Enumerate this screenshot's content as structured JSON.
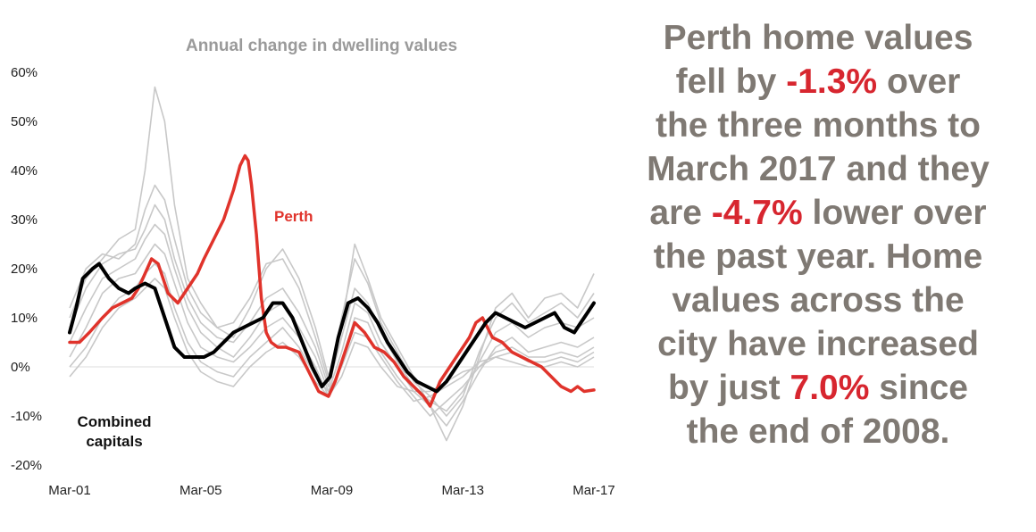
{
  "chart_data": {
    "type": "line",
    "title": "Annual change in dwelling values",
    "xlabel": "",
    "ylabel": "",
    "x_tick_labels": [
      "Mar-01",
      "Mar-05",
      "Mar-09",
      "Mar-13",
      "Mar-17"
    ],
    "x_ticks": [
      2001,
      2005,
      2009,
      2013,
      2017
    ],
    "xlim": [
      2001,
      2017
    ],
    "y_tick_labels": [
      "60%",
      "50%",
      "40%",
      "30%",
      "20%",
      "10%",
      "0%",
      "-10%",
      "-20%"
    ],
    "y_ticks": [
      60,
      50,
      40,
      30,
      20,
      10,
      0,
      -10,
      -20
    ],
    "ylim": [
      -20,
      60
    ],
    "grid": false,
    "zero_line": true,
    "series_labels": {
      "perth": "Perth",
      "combined": "Combined capitals"
    },
    "colors": {
      "perth": "#e0332b",
      "combined": "#000000",
      "other_capitals": "#c8c8c8"
    },
    "series": [
      {
        "name": "Perth",
        "color": "#e0332b",
        "x": [
          2001.0,
          2001.3,
          2001.6,
          2002.0,
          2002.3,
          2002.6,
          2002.9,
          2003.1,
          2003.3,
          2003.5,
          2003.7,
          2004.0,
          2004.3,
          2004.6,
          2004.9,
          2005.1,
          2005.4,
          2005.7,
          2006.0,
          2006.2,
          2006.35,
          2006.45,
          2006.55,
          2006.7,
          2006.85,
          2007.0,
          2007.15,
          2007.35,
          2007.6,
          2008.0,
          2008.3,
          2008.6,
          2008.9,
          2009.1,
          2009.4,
          2009.7,
          2010.0,
          2010.3,
          2010.6,
          2010.9,
          2011.2,
          2011.5,
          2011.8,
          2012.0,
          2012.3,
          2012.6,
          2012.9,
          2013.2,
          2013.4,
          2013.6,
          2013.9,
          2014.2,
          2014.5,
          2014.8,
          2015.1,
          2015.4,
          2015.7,
          2016.0,
          2016.3,
          2016.5,
          2016.7,
          2017.0
        ],
        "values": [
          5,
          5,
          7,
          10,
          12,
          13,
          14,
          16,
          19,
          22,
          21,
          15,
          13,
          16,
          19,
          22,
          26,
          30,
          36,
          41,
          43,
          42,
          37,
          27,
          14,
          7,
          5,
          4,
          4,
          3,
          -1,
          -5,
          -6,
          -3,
          3,
          9,
          7,
          4,
          3,
          1,
          -2,
          -4,
          -6,
          -8,
          -3,
          0,
          3,
          6,
          9,
          10,
          6,
          5,
          3,
          2,
          1,
          0,
          -2,
          -4,
          -5,
          -4,
          -5,
          -4.7
        ]
      },
      {
        "name": "Combined capitals",
        "color": "#000000",
        "x": [
          2001.0,
          2001.2,
          2001.4,
          2001.7,
          2001.9,
          2002.2,
          2002.5,
          2002.8,
          2003.0,
          2003.3,
          2003.6,
          2003.9,
          2004.2,
          2004.5,
          2004.8,
          2005.1,
          2005.4,
          2005.7,
          2006.0,
          2006.3,
          2006.6,
          2006.9,
          2007.2,
          2007.5,
          2007.8,
          2008.1,
          2008.4,
          2008.7,
          2008.95,
          2009.2,
          2009.5,
          2009.8,
          2010.1,
          2010.4,
          2010.7,
          2011.0,
          2011.3,
          2011.6,
          2011.9,
          2012.2,
          2012.5,
          2012.8,
          2013.1,
          2013.4,
          2013.7,
          2014.0,
          2014.3,
          2014.6,
          2014.9,
          2015.2,
          2015.5,
          2015.8,
          2016.1,
          2016.4,
          2016.6,
          2016.8,
          2017.0
        ],
        "values": [
          7,
          12,
          18,
          20,
          21,
          18,
          16,
          15,
          16,
          17,
          16,
          10,
          4,
          2,
          2,
          2,
          3,
          5,
          7,
          8,
          9,
          10,
          13,
          13,
          10,
          5,
          0,
          -4,
          -2,
          6,
          13,
          14,
          12,
          9,
          5,
          2,
          -1,
          -3,
          -4,
          -5,
          -3,
          0,
          3,
          6,
          9,
          11,
          10,
          9,
          8,
          9,
          10,
          11,
          8,
          7,
          9,
          11,
          13
        ]
      }
    ],
    "background_series_x": [
      2001.0,
      2001.5,
      2002.0,
      2002.5,
      2003.0,
      2003.3,
      2003.6,
      2003.9,
      2004.2,
      2004.6,
      2005.0,
      2005.5,
      2006.0,
      2006.5,
      2007.0,
      2007.5,
      2008.0,
      2008.5,
      2008.9,
      2009.3,
      2009.7,
      2010.1,
      2010.5,
      2011.0,
      2011.5,
      2012.0,
      2012.5,
      2013.0,
      2013.5,
      2014.0,
      2014.5,
      2015.0,
      2015.5,
      2016.0,
      2016.5,
      2017.0
    ],
    "background_series": [
      [
        10,
        18,
        22,
        26,
        28,
        40,
        57,
        50,
        33,
        18,
        13,
        8,
        6,
        12,
        20,
        24,
        18,
        8,
        -2,
        8,
        25,
        18,
        10,
        4,
        -2,
        -8,
        -15,
        -8,
        2,
        12,
        15,
        10,
        14,
        15,
        12,
        19
      ],
      [
        12,
        20,
        23,
        22,
        25,
        32,
        37,
        34,
        26,
        16,
        11,
        8,
        9,
        14,
        21,
        22,
        16,
        6,
        -3,
        10,
        22,
        17,
        9,
        3,
        -3,
        -6,
        -10,
        -6,
        3,
        10,
        13,
        9,
        11,
        13,
        10,
        15
      ],
      [
        8,
        16,
        21,
        23,
        24,
        28,
        33,
        30,
        22,
        14,
        9,
        6,
        5,
        9,
        14,
        16,
        11,
        4,
        -4,
        6,
        16,
        13,
        7,
        1,
        -4,
        -7,
        -9,
        -5,
        1,
        7,
        9,
        6,
        8,
        9,
        8,
        10
      ],
      [
        5,
        12,
        18,
        20,
        22,
        26,
        29,
        27,
        20,
        12,
        7,
        4,
        2,
        6,
        11,
        13,
        8,
        2,
        -5,
        3,
        13,
        11,
        5,
        0,
        -5,
        -8,
        -12,
        -7,
        -1,
        4,
        6,
        3,
        4,
        5,
        4,
        6
      ],
      [
        2,
        8,
        15,
        18,
        19,
        22,
        25,
        23,
        17,
        9,
        4,
        2,
        1,
        4,
        8,
        10,
        6,
        0,
        -6,
        1,
        10,
        9,
        3,
        -2,
        -6,
        -10,
        -7,
        -4,
        0,
        3,
        4,
        2,
        2,
        3,
        2,
        4
      ],
      [
        0,
        4,
        10,
        14,
        16,
        19,
        21,
        19,
        12,
        5,
        1,
        -1,
        -2,
        2,
        5,
        8,
        4,
        -2,
        -5,
        0,
        7,
        6,
        2,
        -3,
        -7,
        -6,
        -4,
        -2,
        1,
        2,
        3,
        1,
        1,
        2,
        1,
        3
      ],
      [
        -2,
        2,
        8,
        12,
        14,
        16,
        18,
        16,
        10,
        3,
        -1,
        -3,
        -4,
        0,
        3,
        5,
        2,
        -3,
        -6,
        -2,
        5,
        4,
        0,
        -4,
        -5,
        -5,
        -3,
        -1,
        0,
        2,
        1,
        0,
        0,
        1,
        0,
        2
      ]
    ]
  },
  "headline": {
    "line1": "Perth home values",
    "line2_pre": "fell by ",
    "line2_hl": "-1.3%",
    "line2_post": " over",
    "line3": "the three months to",
    "line4": "March 2017 and they",
    "line5_pre": "are ",
    "line5_hl": "-4.7%",
    "line5_post": " lower over",
    "line6": "the past year.  Home",
    "line7": "values across the",
    "line8": "city have increased",
    "line9_pre": "by just ",
    "line9_hl": "7.0%",
    "line9_post": " since",
    "line10": "the end of 2008."
  }
}
